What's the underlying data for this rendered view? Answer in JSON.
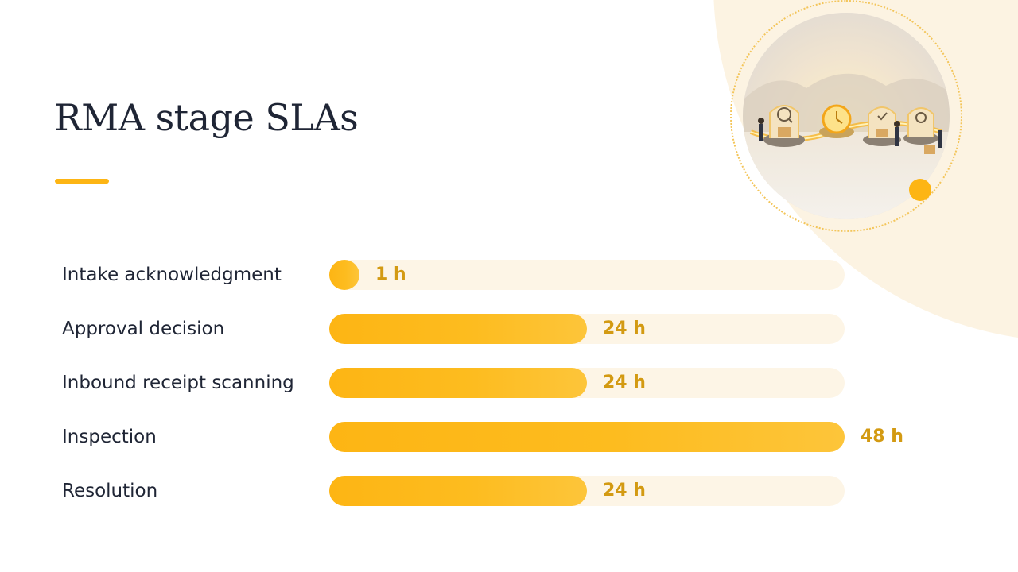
{
  "slide": {
    "title": "RMA stage SLAs"
  },
  "colors": {
    "accent": "#fdb514",
    "track": "#fdf5e6",
    "value_text": "#d39a12",
    "label_text": "#1f2535",
    "corner_blob": "#fcf3e2"
  },
  "illustration": {
    "icon": "returns-workflow-illustration"
  },
  "chart_data": {
    "type": "bar",
    "orientation": "horizontal",
    "categories": [
      "Intake acknowledgment",
      "Approval decision",
      "Inbound receipt scanning",
      "Inspection",
      "Resolution"
    ],
    "values": [
      1,
      24,
      24,
      48,
      24
    ],
    "value_labels": [
      "1 h",
      "24 h",
      "24 h",
      "48 h",
      "24 h"
    ],
    "unit": "h",
    "xlim": [
      0,
      48
    ],
    "grid": false,
    "legend": "none"
  }
}
